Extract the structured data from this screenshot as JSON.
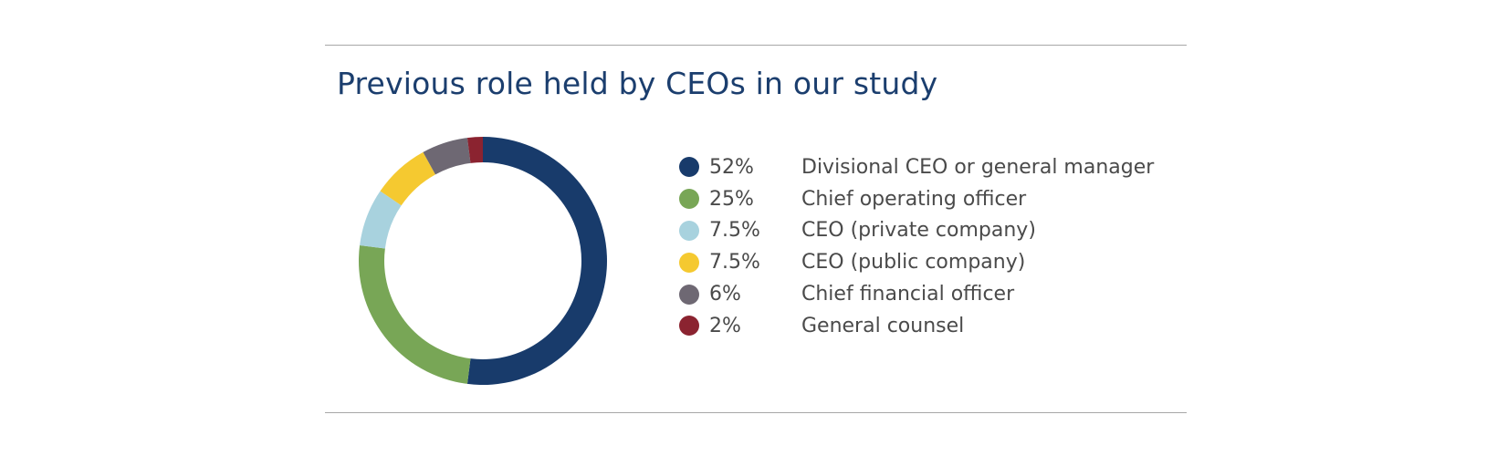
{
  "chart_data": {
    "type": "pie",
    "style": "donut",
    "title": "Previous role held by CEOs in our study",
    "legend_position": "right",
    "slices": [
      {
        "label": "Divisional CEO or general manager",
        "percent_label": "52%",
        "value": 52,
        "color": "#183b6b"
      },
      {
        "label": "Chief operating officer",
        "percent_label": "25%",
        "value": 25,
        "color": "#78a656"
      },
      {
        "label": "CEO (private company)",
        "percent_label": "7.5%",
        "value": 7.5,
        "color": "#a8d2de"
      },
      {
        "label": "CEO (public company)",
        "percent_label": "7.5%",
        "value": 7.5,
        "color": "#f5c930"
      },
      {
        "label": "Chief financial officer",
        "percent_label": "6%",
        "value": 6,
        "color": "#6e6873"
      },
      {
        "label": "General counsel",
        "percent_label": "2%",
        "value": 2,
        "color": "#8b2330"
      }
    ]
  }
}
